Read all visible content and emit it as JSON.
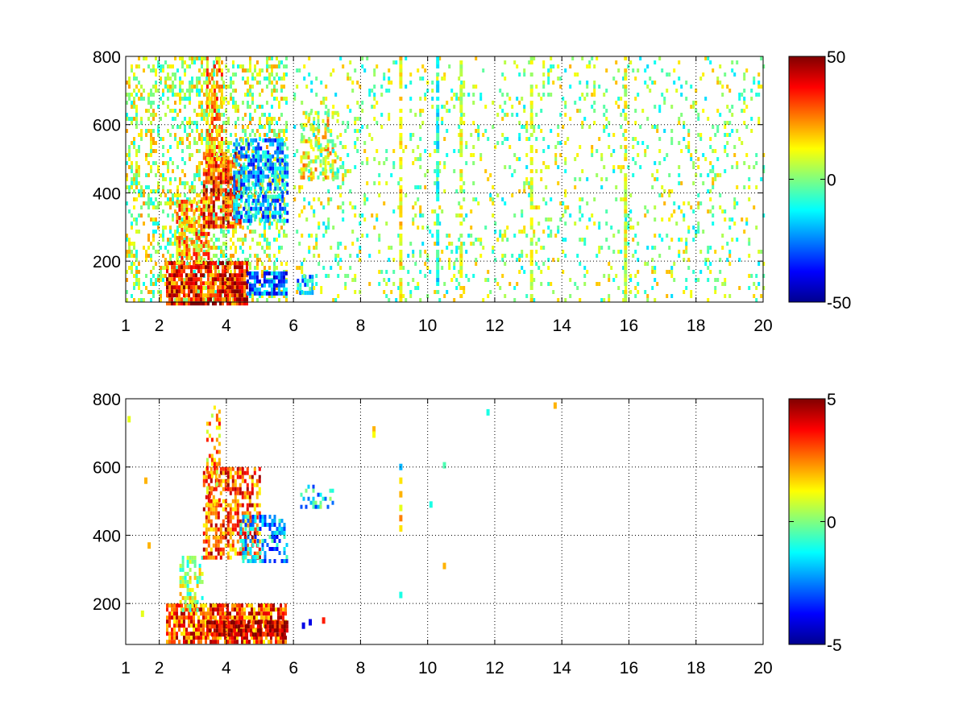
{
  "chart_data": [
    {
      "type": "heatmap",
      "title": "",
      "xlabel": "",
      "ylabel": "",
      "xlim": [
        1,
        20
      ],
      "ylim": [
        80,
        800
      ],
      "x_ticks": [
        1,
        2,
        4,
        6,
        8,
        10,
        12,
        14,
        16,
        18,
        20
      ],
      "x_tick_labels": [
        "1",
        "2",
        "4",
        "6",
        "8",
        "10",
        "12",
        "14",
        "16",
        "18",
        "20"
      ],
      "y_ticks": [
        200,
        400,
        600,
        800
      ],
      "y_tick_labels": [
        "200",
        "400",
        "600",
        "800"
      ],
      "grid": true,
      "colormap": "jet",
      "clim": [
        -50,
        50
      ],
      "colorbar_ticks": [
        50,
        0,
        -50
      ],
      "colorbar_tick_labels": [
        "50",
        "0",
        "-50"
      ],
      "clusters": [
        {
          "x": [
            1.0,
            5.8
          ],
          "y": [
            80,
            800
          ],
          "value": 5,
          "density": 0.35
        },
        {
          "x": [
            2.2,
            4.6
          ],
          "y": [
            80,
            200
          ],
          "value": 35,
          "density": 0.85
        },
        {
          "x": [
            4.6,
            5.8
          ],
          "y": [
            100,
            170
          ],
          "value": -28,
          "density": 0.75
        },
        {
          "x": [
            2.5,
            3.5
          ],
          "y": [
            200,
            380
          ],
          "value": 22,
          "density": 0.6
        },
        {
          "x": [
            3.3,
            4.4
          ],
          "y": [
            300,
            520
          ],
          "value": 32,
          "density": 0.75
        },
        {
          "x": [
            4.2,
            5.8
          ],
          "y": [
            320,
            560
          ],
          "value": -20,
          "density": 0.65
        },
        {
          "x": [
            3.4,
            3.9
          ],
          "y": [
            500,
            800
          ],
          "value": 22,
          "density": 0.55
        },
        {
          "x": [
            6.2,
            7.3
          ],
          "y": [
            440,
            640
          ],
          "value": 10,
          "density": 0.45
        },
        {
          "x": [
            6.1,
            6.6
          ],
          "y": [
            110,
            160
          ],
          "value": -18,
          "density": 0.7
        },
        {
          "x": [
            6.0,
            20.0
          ],
          "y": [
            80,
            800
          ],
          "value": 2,
          "density": 0.12
        }
      ],
      "stripes": [
        {
          "x": 9.2,
          "value": 14
        },
        {
          "x": 11.0,
          "value": 9
        },
        {
          "x": 13.1,
          "value": 9
        },
        {
          "x": 15.9,
          "value": 9
        },
        {
          "x": 10.3,
          "value": -12
        }
      ]
    },
    {
      "type": "heatmap",
      "title": "",
      "xlabel": "",
      "ylabel": "",
      "xlim": [
        1,
        20
      ],
      "ylim": [
        80,
        800
      ],
      "x_ticks": [
        1,
        2,
        4,
        6,
        8,
        10,
        12,
        14,
        16,
        18,
        20
      ],
      "x_tick_labels": [
        "1",
        "2",
        "4",
        "6",
        "8",
        "10",
        "12",
        "14",
        "16",
        "18",
        "20"
      ],
      "y_ticks": [
        200,
        400,
        600,
        800
      ],
      "y_tick_labels": [
        "200",
        "400",
        "600",
        "800"
      ],
      "grid": true,
      "colormap": "jet",
      "clim": [
        -5,
        5
      ],
      "colorbar_ticks": [
        5,
        0,
        -5
      ],
      "colorbar_tick_labels": [
        "5",
        "0",
        "-5"
      ],
      "clusters": [
        {
          "x": [
            2.2,
            5.8
          ],
          "y": [
            90,
            200
          ],
          "value": 3.0,
          "density": 0.8
        },
        {
          "x": [
            3.4,
            5.8
          ],
          "y": [
            110,
            150
          ],
          "value": 4.5,
          "density": 0.85
        },
        {
          "x": [
            2.6,
            3.3
          ],
          "y": [
            180,
            340
          ],
          "value": 0.5,
          "density": 0.4
        },
        {
          "x": [
            3.3,
            5.0
          ],
          "y": [
            330,
            600
          ],
          "value": 3.0,
          "density": 0.6
        },
        {
          "x": [
            4.4,
            5.8
          ],
          "y": [
            330,
            460
          ],
          "value": -2.0,
          "density": 0.5
        },
        {
          "x": [
            3.4,
            3.8
          ],
          "y": [
            480,
            780
          ],
          "value": 2.0,
          "density": 0.35
        },
        {
          "x": [
            6.2,
            7.2
          ],
          "y": [
            480,
            560
          ],
          "value": -1.5,
          "density": 0.35
        }
      ],
      "points": [
        {
          "x": 9.2,
          "y": 600,
          "value": -2.0
        },
        {
          "x": 9.2,
          "y": 560,
          "value": 1.5
        },
        {
          "x": 9.2,
          "y": 520,
          "value": 2.0
        },
        {
          "x": 9.2,
          "y": 480,
          "value": 1.0
        },
        {
          "x": 9.2,
          "y": 450,
          "value": 2.5
        },
        {
          "x": 9.2,
          "y": 420,
          "value": 1.5
        },
        {
          "x": 9.2,
          "y": 225,
          "value": -1.0
        },
        {
          "x": 8.4,
          "y": 710,
          "value": 2.0
        },
        {
          "x": 8.4,
          "y": 695,
          "value": 1.2
        },
        {
          "x": 6.3,
          "y": 135,
          "value": -4.0
        },
        {
          "x": 6.5,
          "y": 145,
          "value": -4.0
        },
        {
          "x": 6.9,
          "y": 150,
          "value": 3.5
        },
        {
          "x": 10.5,
          "y": 605,
          "value": -0.5
        },
        {
          "x": 10.1,
          "y": 490,
          "value": -1.0
        },
        {
          "x": 10.5,
          "y": 310,
          "value": 2.0
        },
        {
          "x": 11.8,
          "y": 760,
          "value": -1.0
        },
        {
          "x": 13.8,
          "y": 780,
          "value": 2.0
        },
        {
          "x": 1.1,
          "y": 740,
          "value": 1.0
        },
        {
          "x": 1.6,
          "y": 560,
          "value": 2.0
        },
        {
          "x": 1.7,
          "y": 370,
          "value": 2.0
        },
        {
          "x": 1.5,
          "y": 170,
          "value": 1.0
        }
      ]
    }
  ]
}
